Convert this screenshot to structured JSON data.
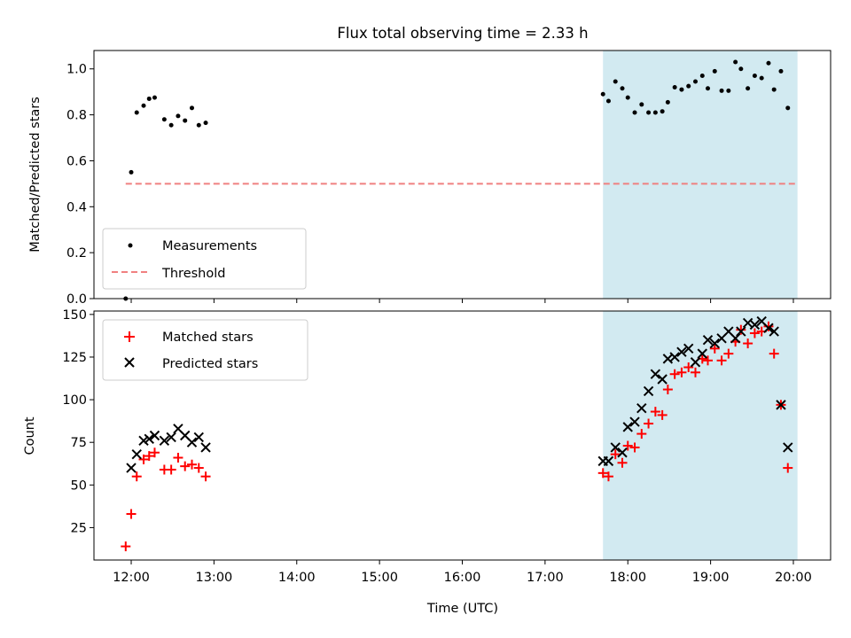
{
  "chart_data": [
    {
      "type": "scatter",
      "title": "Flux total observing time = 2.33 h",
      "ylabel": "Matched/Predicted stars",
      "xlabel": "",
      "xlim": [
        "11:33",
        "20:27"
      ],
      "ylim": [
        0,
        1.08
      ],
      "y_ticks": [
        "0.0",
        "0.2",
        "0.4",
        "0.6",
        "0.8",
        "1.0"
      ],
      "x_ticks": [
        "12:00",
        "13:00",
        "14:00",
        "15:00",
        "16:00",
        "17:00",
        "18:00",
        "19:00",
        "20:00"
      ],
      "highlight_span": {
        "start": "17:42",
        "end": "20:03",
        "color": "#add8e6"
      },
      "legend": {
        "position": "lower-left",
        "entries": [
          "Measurements",
          "Threshold"
        ]
      },
      "threshold": {
        "name": "Threshold",
        "value": 0.5,
        "from": "11:56",
        "to": "20:03",
        "color": "#f08080"
      },
      "series": [
        {
          "name": "Measurements",
          "color": "#000000",
          "points": [
            [
              "11:56",
              0.0
            ],
            [
              "12:00",
              0.55
            ],
            [
              "12:04",
              0.81
            ],
            [
              "12:09",
              0.84
            ],
            [
              "12:13",
              0.87
            ],
            [
              "12:17",
              0.875
            ],
            [
              "12:24",
              0.78
            ],
            [
              "12:29",
              0.755
            ],
            [
              "12:34",
              0.795
            ],
            [
              "12:39",
              0.775
            ],
            [
              "12:44",
              0.83
            ],
            [
              "12:49",
              0.755
            ],
            [
              "12:54",
              0.765
            ],
            [
              "17:42",
              0.89
            ],
            [
              "17:46",
              0.86
            ],
            [
              "17:51",
              0.945
            ],
            [
              "17:56",
              0.915
            ],
            [
              "18:00",
              0.875
            ],
            [
              "18:05",
              0.81
            ],
            [
              "18:10",
              0.845
            ],
            [
              "18:15",
              0.81
            ],
            [
              "18:20",
              0.81
            ],
            [
              "18:25",
              0.815
            ],
            [
              "18:29",
              0.855
            ],
            [
              "18:34",
              0.92
            ],
            [
              "18:39",
              0.91
            ],
            [
              "18:44",
              0.925
            ],
            [
              "18:49",
              0.945
            ],
            [
              "18:54",
              0.97
            ],
            [
              "18:58",
              0.915
            ],
            [
              "19:03",
              0.99
            ],
            [
              "19:08",
              0.905
            ],
            [
              "19:13",
              0.905
            ],
            [
              "19:18",
              1.03
            ],
            [
              "19:22",
              1.0
            ],
            [
              "19:27",
              0.915
            ],
            [
              "19:32",
              0.97
            ],
            [
              "19:37",
              0.96
            ],
            [
              "19:42",
              1.025
            ],
            [
              "19:46",
              0.91
            ],
            [
              "19:51",
              0.99
            ],
            [
              "19:56",
              0.83
            ]
          ]
        }
      ]
    },
    {
      "type": "scatter",
      "title": "",
      "ylabel": "Count",
      "xlabel": "Time (UTC)",
      "xlim": [
        "11:33",
        "20:27"
      ],
      "ylim": [
        6,
        152
      ],
      "y_ticks": [
        "25",
        "50",
        "75",
        "100",
        "125",
        "150"
      ],
      "x_ticks": [
        "12:00",
        "13:00",
        "14:00",
        "15:00",
        "16:00",
        "17:00",
        "18:00",
        "19:00",
        "20:00"
      ],
      "highlight_span": {
        "start": "17:42",
        "end": "20:03",
        "color": "#add8e6"
      },
      "legend": {
        "position": "upper-left",
        "entries": [
          "Matched stars",
          "Predicted stars"
        ]
      },
      "series": [
        {
          "name": "Matched stars",
          "marker": "plus",
          "color": "#ff0000",
          "points": [
            [
              "11:56",
              14
            ],
            [
              "12:00",
              33
            ],
            [
              "12:04",
              55
            ],
            [
              "12:09",
              65
            ],
            [
              "12:13",
              67
            ],
            [
              "12:17",
              69
            ],
            [
              "12:24",
              59
            ],
            [
              "12:29",
              59
            ],
            [
              "12:34",
              66
            ],
            [
              "12:39",
              61
            ],
            [
              "12:44",
              62
            ],
            [
              "12:49",
              60
            ],
            [
              "12:54",
              55
            ],
            [
              "17:42",
              57
            ],
            [
              "17:46",
              55
            ],
            [
              "17:51",
              68
            ],
            [
              "17:56",
              63
            ],
            [
              "18:00",
              73
            ],
            [
              "18:05",
              72
            ],
            [
              "18:10",
              80
            ],
            [
              "18:15",
              86
            ],
            [
              "18:20",
              93
            ],
            [
              "18:25",
              91
            ],
            [
              "18:29",
              106
            ],
            [
              "18:34",
              115
            ],
            [
              "18:39",
              116
            ],
            [
              "18:44",
              119
            ],
            [
              "18:49",
              116
            ],
            [
              "18:54",
              124
            ],
            [
              "18:58",
              123
            ],
            [
              "19:03",
              130
            ],
            [
              "19:08",
              123
            ],
            [
              "19:13",
              127
            ],
            [
              "19:18",
              134
            ],
            [
              "19:22",
              141
            ],
            [
              "19:27",
              133
            ],
            [
              "19:32",
              139
            ],
            [
              "19:37",
              140
            ],
            [
              "19:42",
              143
            ],
            [
              "19:46",
              127
            ],
            [
              "19:51",
              97
            ],
            [
              "19:56",
              60
            ]
          ]
        },
        {
          "name": "Predicted stars",
          "marker": "x",
          "color": "#000000",
          "points": [
            [
              "12:00",
              60
            ],
            [
              "12:04",
              68
            ],
            [
              "12:09",
              76
            ],
            [
              "12:13",
              77
            ],
            [
              "12:17",
              79
            ],
            [
              "12:24",
              76
            ],
            [
              "12:29",
              78
            ],
            [
              "12:34",
              83
            ],
            [
              "12:39",
              79
            ],
            [
              "12:44",
              75
            ],
            [
              "12:49",
              78
            ],
            [
              "12:54",
              72
            ],
            [
              "17:42",
              64
            ],
            [
              "17:46",
              64
            ],
            [
              "17:51",
              72
            ],
            [
              "17:56",
              69
            ],
            [
              "18:00",
              84
            ],
            [
              "18:05",
              87
            ],
            [
              "18:10",
              95
            ],
            [
              "18:15",
              105
            ],
            [
              "18:20",
              115
            ],
            [
              "18:25",
              112
            ],
            [
              "18:29",
              124
            ],
            [
              "18:34",
              125
            ],
            [
              "18:39",
              128
            ],
            [
              "18:44",
              130
            ],
            [
              "18:49",
              122
            ],
            [
              "18:54",
              127
            ],
            [
              "18:58",
              135
            ],
            [
              "19:03",
              133
            ],
            [
              "19:08",
              136
            ],
            [
              "19:13",
              140
            ],
            [
              "19:18",
              136
            ],
            [
              "19:22",
              140
            ],
            [
              "19:27",
              145
            ],
            [
              "19:32",
              144
            ],
            [
              "19:37",
              146
            ],
            [
              "19:42",
              142
            ],
            [
              "19:46",
              140
            ],
            [
              "19:51",
              97
            ],
            [
              "19:56",
              72
            ]
          ]
        }
      ]
    }
  ]
}
